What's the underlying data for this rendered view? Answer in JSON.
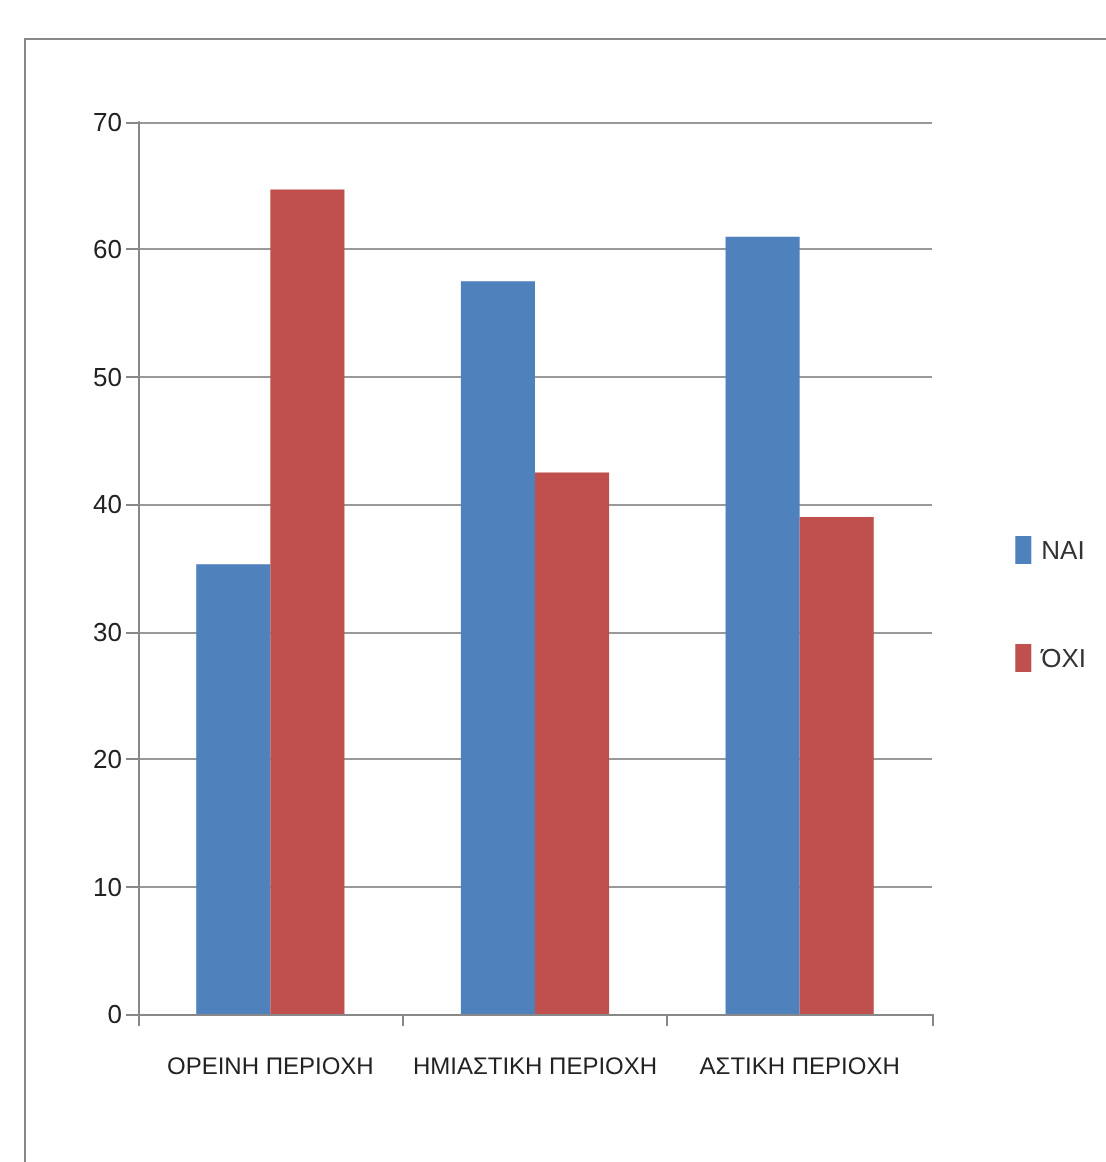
{
  "chart_data": {
    "type": "bar",
    "categories": [
      "ΟΡΕΙΝΗ ΠΕΡΙΟΧΗ",
      "ΗΜΙΑΣΤΙΚΗ ΠΕΡΙΟΧΗ",
      "ΑΣΤΙΚΗ ΠΕΡΙΟΧΗ"
    ],
    "series": [
      {
        "name": "ΝΑΙ",
        "color": "#4f81bd",
        "values": [
          35.3,
          57.5,
          61
        ]
      },
      {
        "name": "ΌΧΙ",
        "color": "#c0504d",
        "values": [
          64.7,
          42.5,
          39
        ]
      }
    ],
    "ylim": [
      0,
      70
    ],
    "yticks": [
      0,
      10,
      20,
      30,
      40,
      50,
      60,
      70
    ],
    "grid": "y",
    "legend": "right"
  }
}
